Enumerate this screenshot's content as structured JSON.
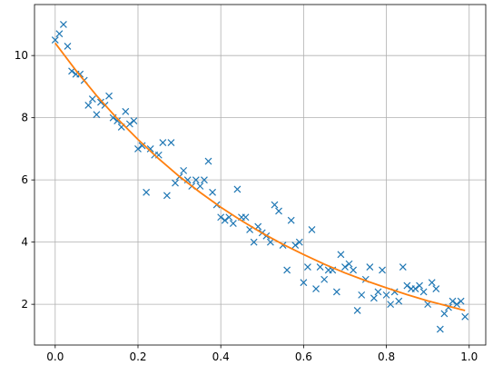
{
  "chart_data": {
    "type": "scatter",
    "xlim": [
      -0.05,
      1.04
    ],
    "ylim": [
      0.69,
      11.64
    ],
    "xticks": [
      {
        "value": 0,
        "label": "0.0"
      },
      0.2,
      0.4,
      0.6,
      0.8,
      {
        "value": 1,
        "label": "1.0"
      }
    ],
    "yticks": [
      2,
      4,
      6,
      8,
      10
    ],
    "grid": true,
    "series": [
      {
        "type": "scatter",
        "color": "#1f77b4",
        "x": [
          0,
          0.01,
          0.02,
          0.03,
          0.04,
          0.05,
          0.06,
          0.07,
          0.08,
          0.09,
          0.1,
          0.11,
          0.12,
          0.13,
          0.14,
          0.15,
          0.16,
          0.17,
          0.18,
          0.19,
          0.2,
          0.21,
          0.22,
          0.23,
          0.24,
          0.25,
          0.26,
          0.27,
          0.28,
          0.29,
          0.3,
          0.31,
          0.32,
          0.33,
          0.34,
          0.35,
          0.36,
          0.37,
          0.38,
          0.39,
          0.4,
          0.41,
          0.42,
          0.43,
          0.44,
          0.45,
          0.46,
          0.47,
          0.48,
          0.49,
          0.5,
          0.51,
          0.52,
          0.53,
          0.54,
          0.55,
          0.56,
          0.57,
          0.58,
          0.59,
          0.6,
          0.61,
          0.62,
          0.63,
          0.64,
          0.65,
          0.66,
          0.67,
          0.68,
          0.69,
          0.7,
          0.71,
          0.72,
          0.73,
          0.74,
          0.75,
          0.76,
          0.77,
          0.78,
          0.79,
          0.8,
          0.81,
          0.82,
          0.83,
          0.84,
          0.85,
          0.86,
          0.87,
          0.88,
          0.89,
          0.9,
          0.91,
          0.92,
          0.93,
          0.94,
          0.95,
          0.96,
          0.97,
          0.98,
          0.99
        ],
        "values": [
          10.5,
          10.7,
          11.0,
          10.3,
          9.5,
          9.4,
          9.4,
          9.2,
          8.4,
          8.6,
          8.1,
          8.5,
          8.4,
          8.7,
          8.0,
          7.9,
          7.7,
          8.2,
          7.8,
          7.9,
          7.0,
          7.1,
          5.6,
          7.0,
          6.8,
          6.8,
          7.2,
          5.5,
          7.2,
          5.9,
          6.1,
          6.3,
          6.0,
          5.8,
          6.0,
          5.8,
          6.0,
          6.6,
          5.6,
          5.2,
          4.8,
          4.7,
          4.8,
          4.6,
          5.7,
          4.8,
          4.8,
          4.4,
          4.0,
          4.5,
          4.3,
          4.2,
          4.0,
          5.2,
          5.0,
          3.9,
          3.1,
          4.7,
          3.9,
          4.0,
          2.7,
          3.2,
          4.4,
          2.5,
          3.2,
          2.8,
          3.1,
          3.1,
          2.4,
          3.6,
          3.2,
          3.3,
          3.1,
          1.8,
          2.3,
          2.8,
          3.2,
          2.2,
          2.4,
          3.1,
          2.3,
          2.0,
          2.4,
          2.1,
          3.2,
          2.6,
          2.5,
          2.5,
          2.6,
          2.4,
          2.0,
          2.7,
          2.5,
          1.2,
          1.7,
          1.9,
          2.1,
          2.0,
          2.1,
          1.6
        ]
      },
      {
        "type": "line",
        "color": "#ff7f0e",
        "x": [
          0,
          0.05,
          0.1,
          0.15,
          0.2,
          0.25,
          0.3,
          0.35,
          0.4,
          0.45,
          0.5,
          0.55,
          0.6,
          0.65,
          0.7,
          0.75,
          0.8,
          0.85,
          0.9,
          0.95,
          0.99
        ],
        "values": [
          10.4,
          9.52,
          8.71,
          7.97,
          7.3,
          6.68,
          6.11,
          5.6,
          5.12,
          4.69,
          4.29,
          3.93,
          3.6,
          3.29,
          3.01,
          2.76,
          2.53,
          2.31,
          2.11,
          1.94,
          1.8
        ]
      }
    ]
  }
}
